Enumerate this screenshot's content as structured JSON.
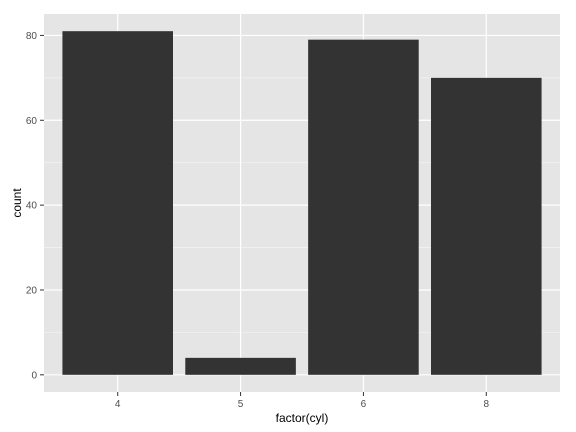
{
  "chart_data": {
    "type": "bar",
    "categories": [
      "4",
      "5",
      "6",
      "8"
    ],
    "values": [
      81,
      4,
      79,
      70
    ],
    "title": "",
    "xlabel": "factor(cyl)",
    "ylabel": "count",
    "ylim": [
      -4.05,
      85.05
    ],
    "yticks": [
      0,
      20,
      40,
      60,
      80
    ],
    "yticks_labels": [
      "0",
      "20",
      "40",
      "60",
      "80"
    ],
    "grid": true,
    "legend": "none",
    "colors": {
      "bar": "#333333",
      "panel": "#e5e5e5",
      "grid_major": "#ffffff",
      "grid_minor": "#f2f2f2",
      "tick_text": "#4d4d4d"
    }
  }
}
